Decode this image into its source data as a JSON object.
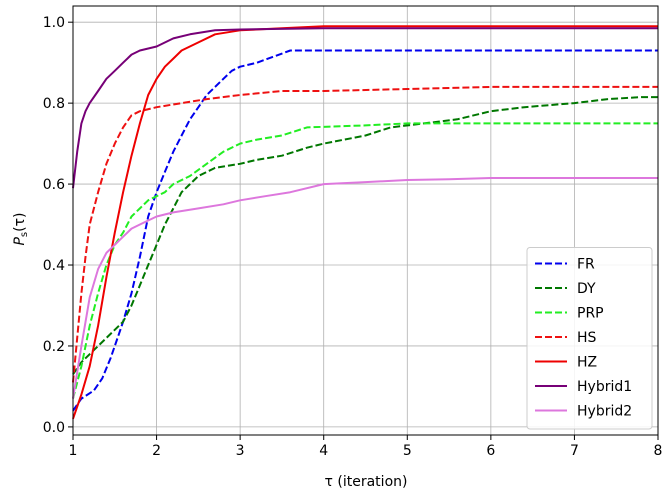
{
  "chart_data": {
    "type": "line",
    "xlabel": "τ (iteration)",
    "ylabel": "P_s(τ)",
    "ylabel_main": "P",
    "ylabel_sub": "s",
    "ylabel_rest": "(τ)",
    "xlim": [
      1,
      8
    ],
    "ylim": [
      -0.02,
      1.04
    ],
    "xticks": [
      1,
      2,
      3,
      4,
      5,
      6,
      7,
      8
    ],
    "xtick_labels": [
      "1",
      "2",
      "3",
      "4",
      "5",
      "6",
      "7",
      "8"
    ],
    "yticks": [
      0.0,
      0.2,
      0.4,
      0.6,
      0.8,
      1.0
    ],
    "ytick_labels": [
      "0.0",
      "0.2",
      "0.4",
      "0.6",
      "0.8",
      "1.0"
    ],
    "grid": true,
    "legend_position": "lower-right",
    "series": [
      {
        "name": "FR",
        "color": "#0000ee",
        "dashed": true,
        "points": [
          [
            1,
            0.04
          ],
          [
            1.1,
            0.07
          ],
          [
            1.25,
            0.09
          ],
          [
            1.35,
            0.12
          ],
          [
            1.45,
            0.17
          ],
          [
            1.55,
            0.23
          ],
          [
            1.6,
            0.26
          ],
          [
            1.7,
            0.33
          ],
          [
            1.8,
            0.42
          ],
          [
            1.9,
            0.52
          ],
          [
            2.0,
            0.58
          ],
          [
            2.1,
            0.63
          ],
          [
            2.2,
            0.68
          ],
          [
            2.3,
            0.72
          ],
          [
            2.4,
            0.76
          ],
          [
            2.5,
            0.79
          ],
          [
            2.6,
            0.82
          ],
          [
            2.7,
            0.84
          ],
          [
            2.8,
            0.86
          ],
          [
            2.9,
            0.88
          ],
          [
            3.0,
            0.89
          ],
          [
            3.2,
            0.9
          ],
          [
            3.4,
            0.915
          ],
          [
            3.6,
            0.93
          ],
          [
            4.0,
            0.93
          ],
          [
            8,
            0.93
          ]
        ]
      },
      {
        "name": "DY",
        "color": "#007700",
        "dashed": true,
        "points": [
          [
            1,
            0.13
          ],
          [
            1.1,
            0.16
          ],
          [
            1.3,
            0.2
          ],
          [
            1.5,
            0.24
          ],
          [
            1.6,
            0.26
          ],
          [
            1.7,
            0.3
          ],
          [
            1.8,
            0.35
          ],
          [
            1.9,
            0.4
          ],
          [
            2.0,
            0.45
          ],
          [
            2.1,
            0.5
          ],
          [
            2.2,
            0.54
          ],
          [
            2.3,
            0.58
          ],
          [
            2.4,
            0.6
          ],
          [
            2.5,
            0.62
          ],
          [
            2.7,
            0.64
          ],
          [
            3.0,
            0.65
          ],
          [
            3.2,
            0.66
          ],
          [
            3.5,
            0.67
          ],
          [
            3.8,
            0.69
          ],
          [
            4.0,
            0.7
          ],
          [
            4.5,
            0.72
          ],
          [
            4.8,
            0.74
          ],
          [
            5.2,
            0.75
          ],
          [
            5.6,
            0.76
          ],
          [
            6.0,
            0.78
          ],
          [
            6.4,
            0.79
          ],
          [
            7.0,
            0.8
          ],
          [
            7.4,
            0.81
          ],
          [
            7.8,
            0.815
          ],
          [
            8,
            0.815
          ]
        ]
      },
      {
        "name": "PRP",
        "color": "#22ee22",
        "dashed": true,
        "points": [
          [
            1,
            0.07
          ],
          [
            1.1,
            0.15
          ],
          [
            1.2,
            0.25
          ],
          [
            1.3,
            0.33
          ],
          [
            1.4,
            0.4
          ],
          [
            1.5,
            0.45
          ],
          [
            1.6,
            0.48
          ],
          [
            1.7,
            0.52
          ],
          [
            1.8,
            0.54
          ],
          [
            1.9,
            0.56
          ],
          [
            2.0,
            0.57
          ],
          [
            2.1,
            0.58
          ],
          [
            2.2,
            0.6
          ],
          [
            2.4,
            0.62
          ],
          [
            2.6,
            0.65
          ],
          [
            2.8,
            0.68
          ],
          [
            3.0,
            0.7
          ],
          [
            3.2,
            0.71
          ],
          [
            3.5,
            0.72
          ],
          [
            3.8,
            0.74
          ],
          [
            4.5,
            0.745
          ],
          [
            5.0,
            0.75
          ],
          [
            8,
            0.75
          ]
        ]
      },
      {
        "name": "HS",
        "color": "#ee1111",
        "dashed": true,
        "points": [
          [
            1,
            0.11
          ],
          [
            1.05,
            0.22
          ],
          [
            1.1,
            0.33
          ],
          [
            1.15,
            0.42
          ],
          [
            1.2,
            0.5
          ],
          [
            1.3,
            0.58
          ],
          [
            1.4,
            0.65
          ],
          [
            1.5,
            0.7
          ],
          [
            1.6,
            0.74
          ],
          [
            1.7,
            0.77
          ],
          [
            1.8,
            0.78
          ],
          [
            2.0,
            0.79
          ],
          [
            2.3,
            0.8
          ],
          [
            2.6,
            0.81
          ],
          [
            3.0,
            0.82
          ],
          [
            3.5,
            0.83
          ],
          [
            4.0,
            0.83
          ],
          [
            5.0,
            0.835
          ],
          [
            6.0,
            0.84
          ],
          [
            8,
            0.84
          ]
        ]
      },
      {
        "name": "HZ",
        "color": "#ee0000",
        "dashed": false,
        "points": [
          [
            1,
            0.02
          ],
          [
            1.1,
            0.08
          ],
          [
            1.2,
            0.15
          ],
          [
            1.3,
            0.25
          ],
          [
            1.4,
            0.37
          ],
          [
            1.5,
            0.48
          ],
          [
            1.6,
            0.58
          ],
          [
            1.7,
            0.67
          ],
          [
            1.8,
            0.75
          ],
          [
            1.9,
            0.82
          ],
          [
            2.0,
            0.86
          ],
          [
            2.1,
            0.89
          ],
          [
            2.2,
            0.91
          ],
          [
            2.3,
            0.93
          ],
          [
            2.5,
            0.95
          ],
          [
            2.7,
            0.97
          ],
          [
            3.0,
            0.98
          ],
          [
            3.5,
            0.985
          ],
          [
            4.0,
            0.99
          ],
          [
            8,
            0.99
          ]
        ]
      },
      {
        "name": "Hybrid1",
        "color": "#770077",
        "dashed": false,
        "points": [
          [
            1,
            0.59
          ],
          [
            1.05,
            0.68
          ],
          [
            1.1,
            0.75
          ],
          [
            1.15,
            0.78
          ],
          [
            1.2,
            0.8
          ],
          [
            1.3,
            0.83
          ],
          [
            1.4,
            0.86
          ],
          [
            1.5,
            0.88
          ],
          [
            1.6,
            0.9
          ],
          [
            1.7,
            0.92
          ],
          [
            1.8,
            0.93
          ],
          [
            2.0,
            0.94
          ],
          [
            2.2,
            0.96
          ],
          [
            2.4,
            0.97
          ],
          [
            2.7,
            0.98
          ],
          [
            3.0,
            0.982
          ],
          [
            4.0,
            0.985
          ],
          [
            8,
            0.985
          ]
        ]
      },
      {
        "name": "Hybrid2",
        "color": "#dd77dd",
        "dashed": false,
        "points": [
          [
            1,
            0.07
          ],
          [
            1.1,
            0.2
          ],
          [
            1.2,
            0.32
          ],
          [
            1.3,
            0.39
          ],
          [
            1.4,
            0.43
          ],
          [
            1.5,
            0.45
          ],
          [
            1.6,
            0.47
          ],
          [
            1.7,
            0.49
          ],
          [
            1.8,
            0.5
          ],
          [
            1.9,
            0.51
          ],
          [
            2.0,
            0.52
          ],
          [
            2.2,
            0.53
          ],
          [
            2.5,
            0.54
          ],
          [
            2.8,
            0.55
          ],
          [
            3.0,
            0.56
          ],
          [
            3.3,
            0.57
          ],
          [
            3.6,
            0.58
          ],
          [
            4.0,
            0.6
          ],
          [
            4.5,
            0.605
          ],
          [
            5.0,
            0.61
          ],
          [
            5.5,
            0.612
          ],
          [
            6.0,
            0.615
          ],
          [
            8,
            0.615
          ]
        ]
      }
    ]
  }
}
